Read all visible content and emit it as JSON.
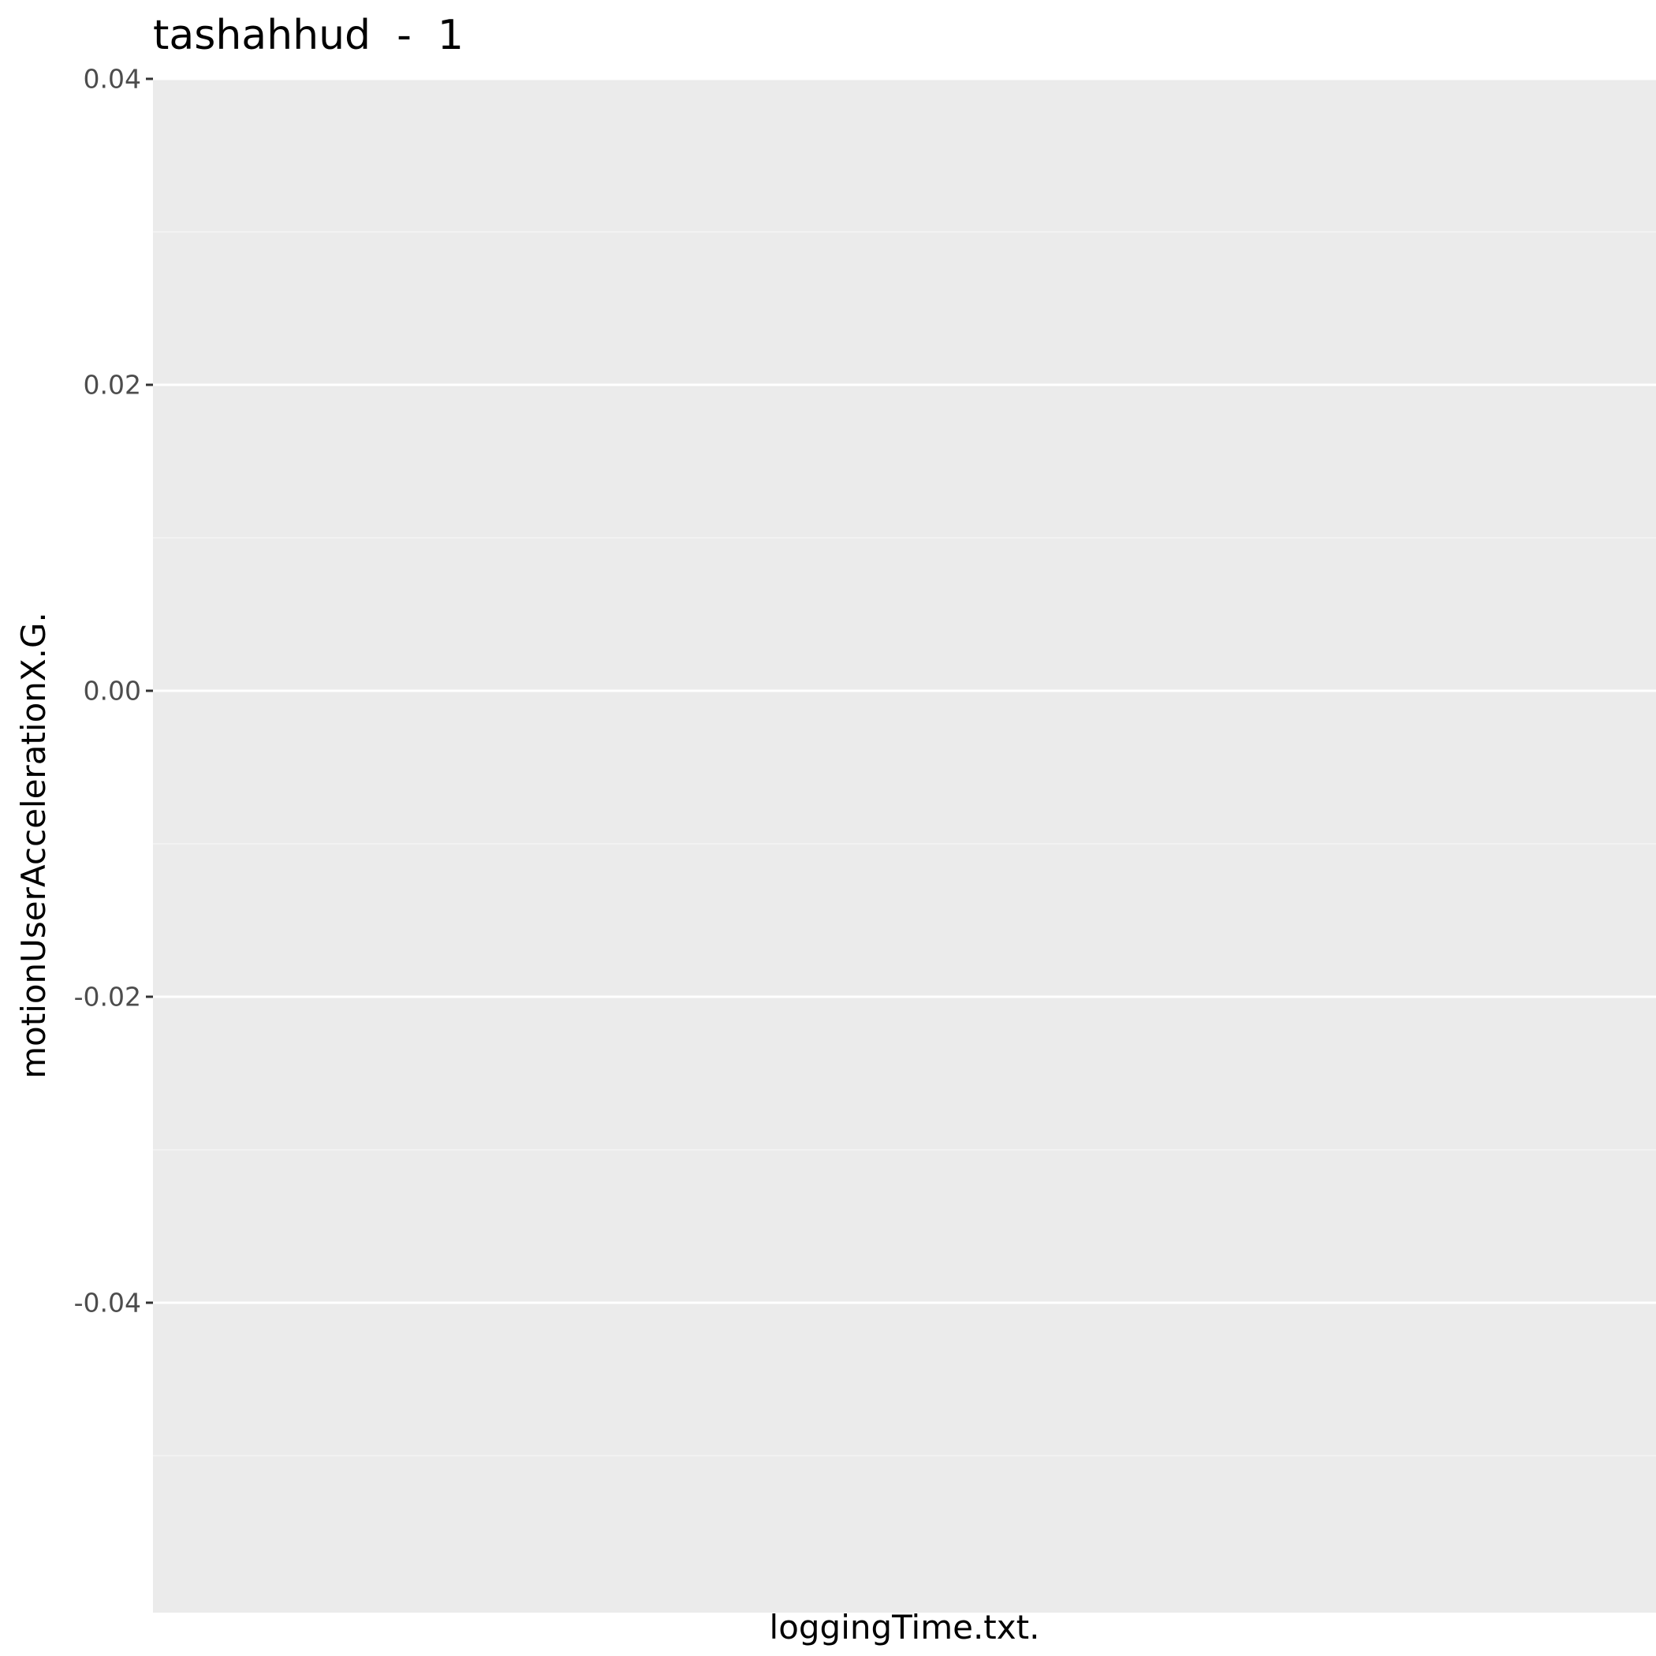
{
  "chart_data": {
    "type": "line",
    "title": "tashahhud  -  1",
    "xlabel": "loggingTime.txt.",
    "ylabel": "motionUserAccelerationX.G.",
    "ylim": [
      -0.05,
      0.04
    ],
    "yticks": [
      0.04,
      0.02,
      0.0,
      -0.02,
      -0.04
    ],
    "ytick_labels": [
      "0.04",
      "0.02",
      "0.00",
      "-0.02",
      "-0.04"
    ],
    "yminor": [
      0.03,
      0.01,
      -0.01,
      -0.03,
      -0.05
    ],
    "xticks": [],
    "series": [],
    "grid": true,
    "legend": "none",
    "colors": {
      "panel_background": "#ebebeb",
      "grid_major": "#ffffff",
      "grid_minor": "#f5f5f5",
      "tick_mark": "#333333",
      "tick_label": "#4d4d4d"
    }
  }
}
